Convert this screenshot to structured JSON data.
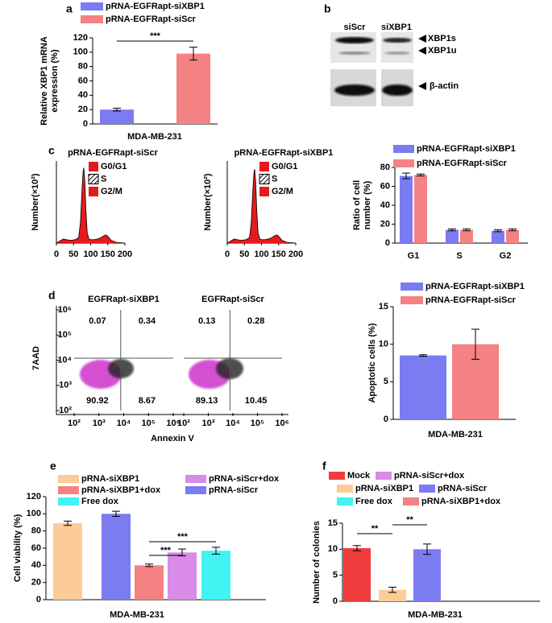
{
  "panel_labels": [
    "a",
    "b",
    "c",
    "d",
    "e",
    "f"
  ],
  "blot": {
    "lanes": [
      "siScr",
      "siXBP1"
    ],
    "bands": [
      "XBP1s",
      "XBP1u",
      "β-actin"
    ]
  },
  "chart_data": [
    {
      "type": "bar",
      "categories": [
        "MDA-MB-231"
      ],
      "ylabel": [
        "Relative XBP1 mRNA",
        "expression (%)"
      ],
      "ylim": [
        0,
        120
      ],
      "yticks": [
        0,
        20,
        40,
        60,
        80,
        100,
        120
      ],
      "series": [
        {
          "name": "pRNA-EGFRapt-siXBP1",
          "color": "#7b7bf2",
          "values": [
            20
          ],
          "errors": [
            2
          ]
        },
        {
          "name": "pRNA-EGFRapt-siScr",
          "color": "#f58282",
          "values": [
            98
          ],
          "errors": [
            9
          ]
        }
      ],
      "annotations": [
        "***"
      ]
    },
    {
      "type": "area",
      "title": "pRNA-EGFRapt-siScr",
      "ylabel": "Number(×10²)",
      "legend": [
        "G0/G1",
        "S",
        "G2/M"
      ],
      "x": [
        0,
        20,
        40,
        55,
        65,
        70,
        75,
        78,
        80,
        83,
        86,
        90,
        95,
        100,
        110,
        120,
        130,
        140,
        145,
        150,
        160,
        175,
        200
      ],
      "values": [
        0,
        0.6,
        0.4,
        0.5,
        0.8,
        3,
        8,
        10.5,
        11,
        9,
        5,
        1.5,
        0.6,
        0.5,
        0.5,
        0.6,
        0.8,
        1.1,
        1.2,
        1,
        0.4,
        0.1,
        0
      ],
      "xlim": [
        0,
        200
      ],
      "xticks": [
        0,
        50,
        100,
        150,
        200
      ],
      "ylim": [
        0,
        12
      ],
      "color": "#e41a1c"
    },
    {
      "type": "area",
      "title": "pRNA-EGFRapt-siXBP1",
      "ylabel": "Number(×10²)",
      "legend": [
        "G0/G1",
        "S",
        "G2/M"
      ],
      "x": [
        0,
        20,
        40,
        55,
        65,
        70,
        75,
        78,
        80,
        83,
        86,
        90,
        95,
        100,
        110,
        120,
        130,
        140,
        145,
        150,
        160,
        175,
        200
      ],
      "values": [
        0,
        0.6,
        0.4,
        0.5,
        0.8,
        3,
        8,
        10.3,
        10.8,
        9,
        5,
        1.5,
        0.6,
        0.5,
        0.5,
        0.6,
        0.8,
        1.1,
        1.2,
        1,
        0.4,
        0.1,
        0
      ],
      "xlim": [
        0,
        200
      ],
      "xticks": [
        0,
        50,
        100,
        150,
        200
      ],
      "ylim": [
        0,
        12
      ],
      "color": "#e41a1c"
    },
    {
      "type": "bar",
      "categories": [
        "G1",
        "S",
        "G2"
      ],
      "ylabel": [
        "Ratio of cell",
        "number (%)"
      ],
      "ylim": [
        0,
        80
      ],
      "yticks": [
        0,
        20,
        40,
        60,
        80
      ],
      "series": [
        {
          "name": "pRNA-EGFRapt-siXBP1",
          "color": "#7b7bf2",
          "values": [
            71,
            14,
            13
          ],
          "errors": [
            3,
            1,
            1
          ]
        },
        {
          "name": "pRNA-EGFRapt-siScr",
          "color": "#f58282",
          "values": [
            72,
            14,
            14
          ],
          "errors": [
            1,
            1,
            1
          ]
        }
      ]
    },
    {
      "type": "flow",
      "title": "EGFRapt-siXBP1",
      "xlabel": "Annexin V",
      "ylabel": "7AAD",
      "quadrants": [
        0.07,
        0.34,
        90.92,
        8.67
      ],
      "log": true,
      "xlim": [
        100,
        1000000
      ],
      "ylim": [
        100,
        1000000
      ],
      "xticks": [
        {
          "value": 100,
          "label": "10²"
        },
        {
          "value": 1000,
          "label": "10³"
        },
        {
          "value": 10000,
          "label": "10⁴"
        },
        {
          "value": 100000,
          "label": "10⁵"
        },
        {
          "value": 1000000,
          "label": "10⁶"
        }
      ],
      "yticks": [
        {
          "value": 100,
          "label": "10²"
        },
        {
          "value": 1000,
          "label": "10³"
        },
        {
          "value": 10000,
          "label": "10⁴"
        },
        {
          "value": 100000,
          "label": "10⁵"
        },
        {
          "value": 1000000,
          "label": "10⁶"
        }
      ]
    },
    {
      "type": "flow",
      "title": "EGFRapt-siScr",
      "quadrants": [
        0.13,
        0.28,
        89.13,
        10.45
      ],
      "log": true,
      "xlim": [
        100,
        1000000
      ],
      "ylim": [
        100,
        1000000
      ],
      "xticks": [
        {
          "value": 100,
          "label": "10²"
        },
        {
          "value": 1000,
          "label": "10³"
        },
        {
          "value": 10000,
          "label": "10⁴"
        },
        {
          "value": 100000,
          "label": "10⁵"
        },
        {
          "value": 1000000,
          "label": "10⁶"
        }
      ]
    },
    {
      "type": "bar",
      "categories": [
        "MDA-MB-231"
      ],
      "ylabel": "Apoptotic cells (%)",
      "ylim": [
        0,
        15
      ],
      "yticks": [
        0,
        5,
        10,
        15
      ],
      "series": [
        {
          "name": "pRNA-EGFRapt-siXBP1",
          "color": "#7b7bf2",
          "values": [
            8.5
          ],
          "errors": [
            0.1
          ]
        },
        {
          "name": "pRNA-EGFRapt-siScr",
          "color": "#f58282",
          "values": [
            10
          ],
          "errors": [
            2
          ]
        }
      ]
    },
    {
      "type": "bar",
      "categories": [
        "MDA-MB-231"
      ],
      "ylabel": "Cell viability (%)",
      "ylim": [
        0,
        120
      ],
      "yticks": [
        0,
        20,
        40,
        60,
        80,
        100,
        120
      ],
      "series": [
        {
          "name": "pRNA-siXBP1",
          "color": "#fccb98",
          "values": [
            89
          ],
          "errors": [
            2.5
          ]
        },
        {
          "name": "pRNA-siScr",
          "color": "#7b7bf2",
          "values": [
            100
          ],
          "errors": [
            3
          ]
        },
        {
          "name": "pRNA-siXBP1+dox",
          "color": "#f58282",
          "values": [
            40
          ],
          "errors": [
            1.5
          ]
        },
        {
          "name": "pRNA-siScr+dox",
          "color": "#d98be8",
          "values": [
            55
          ],
          "errors": [
            4
          ]
        },
        {
          "name": "Free dox",
          "color": "#41f3f3",
          "values": [
            57
          ],
          "errors": [
            4
          ]
        }
      ],
      "annotations": [
        "***",
        "***"
      ]
    },
    {
      "type": "bar",
      "categories": [
        "MDA-MB-231"
      ],
      "ylabel": "Number of colonies",
      "ylim": [
        0,
        15
      ],
      "yticks": [
        0,
        5,
        10,
        15
      ],
      "series": [
        {
          "name": "Mock",
          "color": "#f03c3c",
          "values": [
            10.2
          ],
          "errors": [
            0.5
          ]
        },
        {
          "name": "pRNA-siXBP1",
          "color": "#fccb98",
          "values": [
            2.2
          ],
          "errors": [
            0.5
          ]
        },
        {
          "name": "pRNA-siScr",
          "color": "#7b7bf2",
          "values": [
            10
          ],
          "errors": [
            1
          ]
        },
        {
          "name": "pRNA-siScr+dox",
          "color": "#d98be8",
          "values": [
            0
          ],
          "errors": [
            0
          ]
        },
        {
          "name": "Free dox",
          "color": "#41f3f3",
          "values": [
            0
          ],
          "errors": [
            0
          ]
        },
        {
          "name": "pRNA-siXBP1+dox",
          "color": "#f58282",
          "values": [
            0
          ],
          "errors": [
            0
          ]
        }
      ],
      "annotations": [
        "**",
        "**"
      ]
    }
  ]
}
